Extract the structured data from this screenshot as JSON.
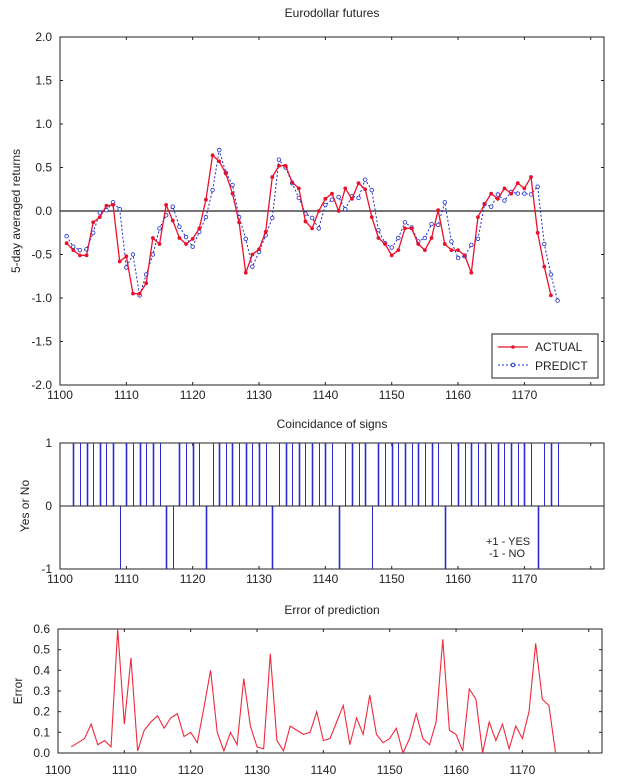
{
  "colors": {
    "actual": "#e8112d",
    "predict": "#1b2ccf",
    "bars": "#2a2ad0",
    "error": "#f0283c",
    "axis": "#222222"
  },
  "chart_data": [
    {
      "type": "line",
      "title": "Eurodollar futures",
      "xlabel": "",
      "ylabel": "5-day averaged returns",
      "xlim": [
        1100,
        1182
      ],
      "ylim": [
        -2.0,
        2.0
      ],
      "x_ticks": [
        1100,
        1110,
        1120,
        1130,
        1140,
        1150,
        1160,
        1170,
        1180
      ],
      "x_tick_labels": [
        "1100",
        "1110",
        "1120",
        "1130",
        "1140",
        "1150",
        "1160",
        "1170",
        ""
      ],
      "y_ticks": [
        -2.0,
        -1.5,
        -1.0,
        -0.5,
        0.0,
        0.5,
        1.0,
        1.5,
        2.0
      ],
      "y_tick_labels": [
        "-2.0",
        "-1.5",
        "-1.0",
        "-0.5",
        "0.0",
        "0.5",
        "1.0",
        "1.5",
        "2.0"
      ],
      "reference_line": 0,
      "grid": false,
      "legend": {
        "position": "bottom-right",
        "entries": [
          "ACTUAL",
          "PREDICT"
        ]
      },
      "series": [
        {
          "name": "ACTUAL",
          "x_start": 1101,
          "values": [
            -0.37,
            -0.45,
            -0.51,
            -0.51,
            -0.13,
            -0.07,
            0.06,
            0.07,
            -0.58,
            -0.52,
            -0.95,
            -0.95,
            -0.83,
            -0.31,
            -0.38,
            0.07,
            -0.11,
            -0.31,
            -0.38,
            -0.32,
            -0.2,
            0.13,
            0.64,
            0.57,
            0.43,
            0.2,
            -0.13,
            -0.71,
            -0.5,
            -0.44,
            -0.24,
            0.39,
            0.52,
            0.52,
            0.33,
            0.26,
            -0.12,
            -0.2,
            0.0,
            0.14,
            0.2,
            0.0,
            0.26,
            0.14,
            0.32,
            0.25,
            -0.07,
            -0.31,
            -0.38,
            -0.51,
            -0.45,
            -0.2,
            -0.2,
            -0.38,
            -0.45,
            -0.31,
            0.01,
            -0.38,
            -0.45,
            -0.45,
            -0.51,
            -0.71,
            -0.07,
            0.08,
            0.2,
            0.14,
            0.26,
            0.2,
            0.32,
            0.26,
            0.39,
            -0.25,
            -0.64,
            -0.97
          ]
        },
        {
          "name": "PREDICT",
          "x_start": 1101,
          "values": [
            -0.29,
            -0.41,
            -0.45,
            -0.44,
            -0.25,
            -0.02,
            0.01,
            0.1,
            0.02,
            -0.65,
            -0.5,
            -0.97,
            -0.73,
            -0.5,
            -0.2,
            -0.05,
            0.05,
            -0.18,
            -0.3,
            -0.41,
            -0.24,
            -0.07,
            0.24,
            0.7,
            0.44,
            0.3,
            -0.07,
            -0.32,
            -0.64,
            -0.47,
            -0.28,
            -0.08,
            0.59,
            0.5,
            0.32,
            0.15,
            -0.03,
            -0.08,
            -0.2,
            0.07,
            0.13,
            0.16,
            0.02,
            0.17,
            0.15,
            0.36,
            0.24,
            -0.22,
            -0.37,
            -0.42,
            -0.31,
            -0.13,
            -0.19,
            -0.35,
            -0.31,
            -0.15,
            -0.16,
            0.1,
            -0.35,
            -0.54,
            -0.52,
            -0.39,
            -0.32,
            0.08,
            0.05,
            0.19,
            0.12,
            0.22,
            0.2,
            0.2,
            0.19,
            0.28,
            -0.38,
            -0.73,
            -1.03
          ]
        }
      ]
    },
    {
      "type": "bar",
      "title": "Coincidance of signs",
      "xlabel": "",
      "ylabel": "Yes or No",
      "xlim": [
        1100,
        1182
      ],
      "ylim": [
        -1,
        1
      ],
      "x_ticks": [
        1100,
        1110,
        1120,
        1130,
        1140,
        1150,
        1160,
        1170,
        1180
      ],
      "x_tick_labels": [
        "1100",
        "1110",
        "1120",
        "1130",
        "1140",
        "1150",
        "1160",
        "1170",
        ""
      ],
      "y_ticks": [
        -1,
        0,
        1
      ],
      "y_tick_labels": [
        "-1",
        "0",
        "1"
      ],
      "annotation": [
        "+1 - YES",
        "-1 - NO"
      ],
      "x_start": 1102,
      "values": [
        1,
        1,
        1,
        1,
        1,
        1,
        1,
        -1,
        1,
        1,
        1,
        1,
        1,
        1,
        -1,
        -1,
        1,
        1,
        1,
        1,
        -1,
        1,
        1,
        1,
        1,
        1,
        1,
        1,
        1,
        1,
        -1,
        1,
        1,
        1,
        1,
        1,
        1,
        1,
        1,
        1,
        -1,
        1,
        1,
        1,
        1,
        -1,
        1,
        1,
        1,
        1,
        1,
        1,
        1,
        1,
        1,
        1,
        -1,
        1,
        1,
        1,
        1,
        1,
        1,
        1,
        1,
        1,
        1,
        1,
        1,
        1,
        -1,
        1,
        1,
        1
      ]
    },
    {
      "type": "line",
      "title": "Error of prediction",
      "xlabel": "",
      "ylabel": "Error",
      "xlim": [
        1100,
        1182
      ],
      "ylim": [
        0.0,
        0.6
      ],
      "x_ticks": [
        1100,
        1110,
        1120,
        1130,
        1140,
        1150,
        1160,
        1170,
        1180
      ],
      "x_tick_labels": [
        "1100",
        "1110",
        "1120",
        "1130",
        "1140",
        "1150",
        "1160",
        "1170",
        ""
      ],
      "y_ticks": [
        0.0,
        0.1,
        0.2,
        0.3,
        0.4,
        0.5,
        0.6
      ],
      "y_tick_labels": [
        "0.0",
        "0.1",
        "0.2",
        "0.3",
        "0.4",
        "0.5",
        "0.6"
      ],
      "x_start": 1102,
      "values": [
        0.03,
        0.05,
        0.07,
        0.14,
        0.04,
        0.06,
        0.03,
        0.6,
        0.14,
        0.46,
        0.01,
        0.11,
        0.15,
        0.18,
        0.12,
        0.17,
        0.19,
        0.08,
        0.1,
        0.05,
        0.22,
        0.4,
        0.1,
        0.01,
        0.1,
        0.04,
        0.36,
        0.13,
        0.03,
        0.02,
        0.48,
        0.06,
        0.01,
        0.13,
        0.11,
        0.09,
        0.1,
        0.2,
        0.06,
        0.07,
        0.15,
        0.23,
        0.04,
        0.17,
        0.09,
        0.28,
        0.09,
        0.05,
        0.07,
        0.12,
        0.0,
        0.07,
        0.19,
        0.07,
        0.04,
        0.15,
        0.55,
        0.11,
        0.09,
        0.01,
        0.31,
        0.26,
        0.0,
        0.15,
        0.06,
        0.14,
        0.02,
        0.13,
        0.07,
        0.2,
        0.53,
        0.26,
        0.23,
        0.0
      ]
    }
  ]
}
